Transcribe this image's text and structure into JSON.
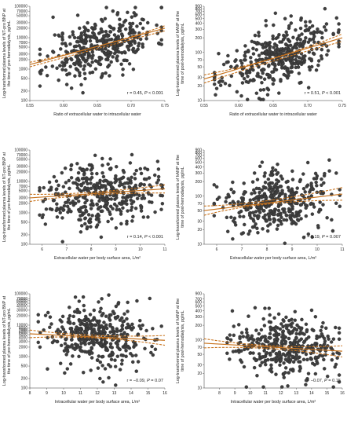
{
  "colors": {
    "fit_line": "#c8741f",
    "ci_line": "#c8741f",
    "points": "#3f3f3f"
  },
  "chart_data": [
    {
      "id": "a",
      "type": "scatter",
      "yscale": "log",
      "xlabel": "Ratio of extracellular water to intracellular water",
      "ylabel": "Log-transformed plasma levels of NT-pro BNP at the time of pre-hemodialysis, pg/mL",
      "xlim": [
        0.55,
        0.75
      ],
      "ylim": [
        100,
        100000
      ],
      "xticks": [
        0.55,
        0.6,
        0.65,
        0.7,
        0.75
      ],
      "xtick_labels": [
        "0.55",
        "0.60",
        "0.65",
        "0.70",
        "0.75"
      ],
      "yticks": [
        100,
        200,
        500,
        1000,
        2000,
        3000,
        5000,
        7000,
        10000,
        20000,
        30000,
        50000,
        70000,
        100000
      ],
      "ytick_labels": [
        "100",
        "200",
        "500",
        "1000",
        "2000",
        "3000",
        "5000",
        "7000",
        "10000",
        "20000",
        "30000",
        "50000",
        "70000",
        "100000"
      ],
      "annotation": {
        "r_text": "r = 0.45, ",
        "p_text": "P",
        "p_value": " < 0.001"
      },
      "fit": {
        "x": [
          0.55,
          0.75
        ],
        "y": [
          1400,
          20000
        ]
      },
      "ci_upper": {
        "x": [
          0.55,
          0.65,
          0.75
        ],
        "y": [
          1650,
          5300,
          24000
        ]
      },
      "ci_lower": {
        "x": [
          0.55,
          0.65,
          0.75
        ],
        "y": [
          1180,
          4500,
          16500
        ]
      },
      "scatter": {
        "n": 400,
        "x_range": [
          0.565,
          0.745
        ],
        "noise_decades": 0.45,
        "seed": 11
      }
    },
    {
      "id": "b",
      "type": "scatter",
      "yscale": "log",
      "xlabel": "Ratio of extracellular water to intracellular water",
      "ylabel": "Log-transformed plasma levels of hANP at the time of post-hemodialysis, pg/mL",
      "xlim": [
        0.55,
        0.75
      ],
      "ylim": [
        10,
        900
      ],
      "xticks": [
        0.55,
        0.6,
        0.65,
        0.7,
        0.75
      ],
      "xtick_labels": [
        "0.55",
        "0.60",
        "0.65",
        "0.70",
        "0.75"
      ],
      "yticks": [
        10,
        20,
        30,
        50,
        70,
        100,
        200,
        300,
        400,
        500,
        600,
        700,
        800,
        900
      ],
      "ytick_labels": [
        "10",
        "20",
        "30",
        "50",
        "70",
        "100",
        "200",
        "300",
        "400",
        "500",
        "600",
        "700",
        "800",
        "900"
      ],
      "annotation": {
        "r_text": "r = 0.51, ",
        "p_text": "P",
        "p_value": " < 0.001"
      },
      "fit": {
        "x": [
          0.55,
          0.75
        ],
        "y": [
          28,
          200
        ]
      },
      "ci_upper": {
        "x": [
          0.55,
          0.65,
          0.75
        ],
        "y": [
          34,
          76,
          240
        ]
      },
      "ci_lower": {
        "x": [
          0.55,
          0.65,
          0.75
        ],
        "y": [
          23,
          66,
          168
        ]
      },
      "scatter": {
        "n": 400,
        "x_range": [
          0.565,
          0.745
        ],
        "noise_decades": 0.3,
        "seed": 23
      }
    },
    {
      "id": "c",
      "type": "scatter",
      "yscale": "log",
      "xlabel": "Extracellular water per body surface area, L/m²",
      "ylabel": "Log-transformed plasma levels of NT-pro BNP at the time of pre-hemodialysis, pg/mL",
      "xlim": [
        5.5,
        11
      ],
      "ylim": [
        100,
        100000
      ],
      "xticks": [
        6,
        7,
        8,
        9,
        10,
        11
      ],
      "xtick_labels": [
        "6",
        "7",
        "8",
        "9",
        "10",
        "11"
      ],
      "yticks": [
        100,
        200,
        500,
        1000,
        2000,
        3000,
        5000,
        7000,
        10000,
        20000,
        30000,
        50000,
        70000,
        100000
      ],
      "ytick_labels": [
        "100",
        "200",
        "500",
        "1000",
        "2000",
        "3000",
        "5000",
        "7000",
        "10000",
        "20000",
        "30000",
        "50000",
        "70000",
        "100000"
      ],
      "annotation": {
        "r_text": "r = 0.14, ",
        "p_text": "P",
        "p_value": " < 0.001"
      },
      "fit": {
        "x": [
          5.5,
          11
        ],
        "y": [
          3000,
          5800
        ]
      },
      "ci_upper": {
        "x": [
          5.5,
          8.0,
          11
        ],
        "y": [
          3900,
          4500,
          7800
        ]
      },
      "ci_lower": {
        "x": [
          5.5,
          8.0,
          11
        ],
        "y": [
          2300,
          3700,
          4300
        ]
      },
      "scatter": {
        "n": 400,
        "x_range": [
          5.9,
          10.9
        ],
        "noise_decades": 0.5,
        "seed": 37
      }
    },
    {
      "id": "d",
      "type": "scatter",
      "yscale": "log",
      "xlabel": "Extracellular water per body surface area, L/m²",
      "ylabel": "Log-transformed plasma levels of hANP at the time of post-hemodialysis, pg/mL",
      "xlim": [
        5.5,
        11
      ],
      "ylim": [
        10,
        900
      ],
      "xticks": [
        6,
        7,
        8,
        9,
        10,
        11
      ],
      "xtick_labels": [
        "6",
        "7",
        "8",
        "9",
        "10",
        "11"
      ],
      "yticks": [
        10,
        20,
        30,
        50,
        70,
        100,
        200,
        300,
        400,
        500,
        600,
        700,
        800,
        900
      ],
      "ytick_labels": [
        "10",
        "20",
        "30",
        "50",
        "70",
        "100",
        "200",
        "300",
        "400",
        "500",
        "600",
        "700",
        "800",
        "900"
      ],
      "annotation": {
        "r_text": "r = 0.19, ",
        "p_text": "P",
        "p_value": " = 0.007"
      },
      "fit": {
        "x": [
          5.5,
          11
        ],
        "y": [
          50,
          110
        ]
      },
      "ci_upper": {
        "x": [
          5.5,
          8.0,
          11
        ],
        "y": [
          62,
          80,
          150
        ]
      },
      "ci_lower": {
        "x": [
          5.5,
          8.0,
          11
        ],
        "y": [
          40,
          68,
          82
        ]
      },
      "scatter": {
        "n": 400,
        "x_range": [
          5.9,
          10.9
        ],
        "noise_decades": 0.32,
        "seed": 41
      }
    },
    {
      "id": "e",
      "type": "scatter",
      "yscale": "log",
      "xlabel": "Intracellular water per body surface area, L/m²",
      "ylabel": "Log-transformed plasma levels of NT-pro BNP at the time of pre-hemodialysis, pg/mL",
      "xlim": [
        8,
        16
      ],
      "ylim": [
        100,
        100000
      ],
      "xticks": [
        8,
        9,
        10,
        11,
        12,
        13,
        14,
        15,
        16
      ],
      "xtick_labels": [
        "8",
        "9",
        "10",
        "11",
        "12",
        "13",
        "14",
        "15",
        "16"
      ],
      "yticks": [
        100,
        200,
        500,
        1000,
        2000,
        3000,
        4000,
        5000,
        6000,
        7000,
        8000,
        10000,
        20000,
        30000,
        40000,
        50000,
        60000,
        70000,
        100000
      ],
      "ytick_labels": [
        "100",
        "200",
        "500",
        "1000",
        "2000",
        "3000",
        "4000",
        "5000",
        "6000",
        "7000",
        "8000",
        "10000",
        "20000",
        "30000",
        "40000",
        "50000",
        "60000",
        "70000",
        "100000"
      ],
      "annotation": {
        "r_text": "r = −0.09, ",
        "p_text": "P",
        "p_value": " = 0.07"
      },
      "fit": {
        "x": [
          8,
          16
        ],
        "y": [
          5300,
          3300
        ]
      },
      "ci_upper": {
        "x": [
          8,
          12,
          16
        ],
        "y": [
          7000,
          4700,
          4700
        ]
      },
      "ci_lower": {
        "x": [
          8,
          12,
          16
        ],
        "y": [
          4000,
          3900,
          2300
        ]
      },
      "scatter": {
        "n": 400,
        "x_range": [
          8.5,
          15.8
        ],
        "noise_decades": 0.5,
        "seed": 53
      }
    },
    {
      "id": "f",
      "type": "scatter",
      "yscale": "log",
      "xlabel": "Intracellular water per body surface area, L/m²",
      "ylabel": "Log-transformed plasma levels of hANP at the time of post-hemodialysis, pg/mL",
      "xlim": [
        7,
        16
      ],
      "ylim": [
        10,
        900
      ],
      "xticks": [
        8,
        9,
        10,
        11,
        12,
        13,
        14,
        15,
        16
      ],
      "xtick_labels": [
        "8",
        "9",
        "10",
        "11",
        "12",
        "13",
        "14",
        "15",
        "16"
      ],
      "yticks": [
        10,
        20,
        30,
        50,
        70,
        100,
        200,
        300,
        400,
        500,
        600,
        700,
        900
      ],
      "ytick_labels": [
        "10",
        "20",
        "30",
        "50",
        "70",
        "100",
        "200",
        "300",
        "400",
        "500",
        "600",
        "700",
        "900"
      ],
      "annotation": {
        "r_text": "r = −0.07, ",
        "p_text": "P",
        "p_value": " = 0.15"
      },
      "fit": {
        "x": [
          7,
          16
        ],
        "y": [
          85,
          58
        ]
      },
      "ci_upper": {
        "x": [
          7,
          11.5,
          16
        ],
        "y": [
          105,
          75,
          75
        ]
      },
      "ci_lower": {
        "x": [
          7,
          11.5,
          16
        ],
        "y": [
          68,
          65,
          44
        ]
      },
      "scatter": {
        "n": 400,
        "x_range": [
          8.5,
          15.8
        ],
        "noise_decades": 0.3,
        "seed": 67
      }
    }
  ]
}
